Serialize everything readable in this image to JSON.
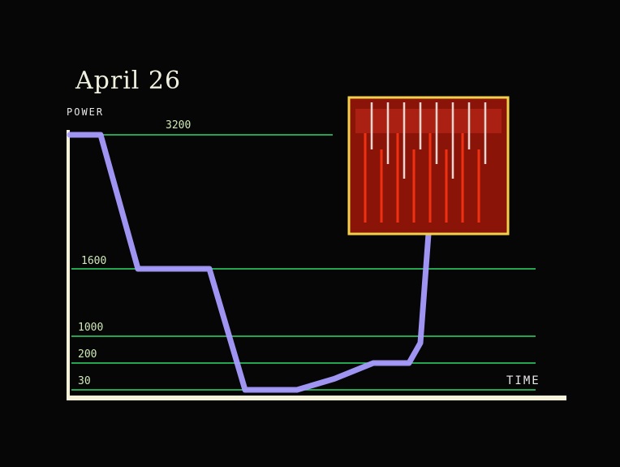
{
  "header": {
    "date_title": "April 26"
  },
  "colors": {
    "background": "#060606",
    "axis": "#f4f2d8",
    "gridline": "#2fd86a",
    "power_line": "#a99cff",
    "inset_border": "#f2d04a",
    "inset_fill": "#8a1408"
  },
  "chart_data": {
    "type": "line",
    "title": "April 26",
    "ylabel": "POWER",
    "xlabel": "TIME",
    "yticks": [
      {
        "label": "3200",
        "value": 3200
      },
      {
        "label": "1600",
        "value": 1600
      },
      {
        "label": "1000",
        "value": 1000
      },
      {
        "label": "200",
        "value": 200
      },
      {
        "label": "30",
        "value": 30
      }
    ],
    "y_scale": "nonlinear (labeled levels only)",
    "grid": true,
    "series": [
      {
        "values_by_step": [
          {
            "t": 0,
            "power": 3200
          },
          {
            "t": 1,
            "power": 3200
          },
          {
            "t": 2,
            "power": 1600
          },
          {
            "t": 3,
            "power": 1600
          },
          {
            "t": 4,
            "power": 30
          },
          {
            "t": 5,
            "power": 30
          },
          {
            "t": 6,
            "power": 100
          },
          {
            "t": 7,
            "power": 200
          },
          {
            "t": 8,
            "power": 200
          },
          {
            "t": 9,
            "power": 800
          },
          {
            "t": 10,
            "power": 3200
          }
        ]
      }
    ],
    "inset": {
      "description_visual": "red power surge bars in yellow box",
      "bar_count": 8
    }
  }
}
